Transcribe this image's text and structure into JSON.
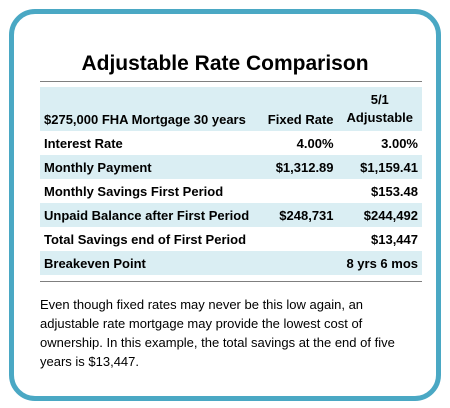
{
  "title": "Adjustable Rate Comparison",
  "table": {
    "header": {
      "label": "$275,000 FHA Mortgage 30 years",
      "fixed": "Fixed Rate",
      "adjustable_top": "5/1",
      "adjustable_bottom": "Adjustable"
    },
    "rows": [
      {
        "label": "Interest Rate",
        "fixed": "4.00%",
        "adjustable": "3.00%"
      },
      {
        "label": "Monthly Payment",
        "fixed": "$1,312.89",
        "adjustable": "$1,159.41"
      },
      {
        "label": "Monthly Savings First Period",
        "fixed": "",
        "adjustable": "$153.48"
      },
      {
        "label": "Unpaid Balance after First Period",
        "fixed": "$248,731",
        "adjustable": "$244,492"
      },
      {
        "label": "Total Savings end of First Period",
        "fixed": "",
        "adjustable": "$13,447"
      },
      {
        "label": "Breakeven Point",
        "fixed": "",
        "adjustable": "8 yrs 6 mos"
      }
    ]
  },
  "note": "Even though fixed rates may never be this low again, an adjustable rate mortgage may provide the lowest cost of ownership.  In this example, the total savings at the end of five years is $13,447.",
  "colors": {
    "border": "#4aa8c4",
    "row_shade": "#daeef3",
    "rule": "#7f7f7f"
  }
}
